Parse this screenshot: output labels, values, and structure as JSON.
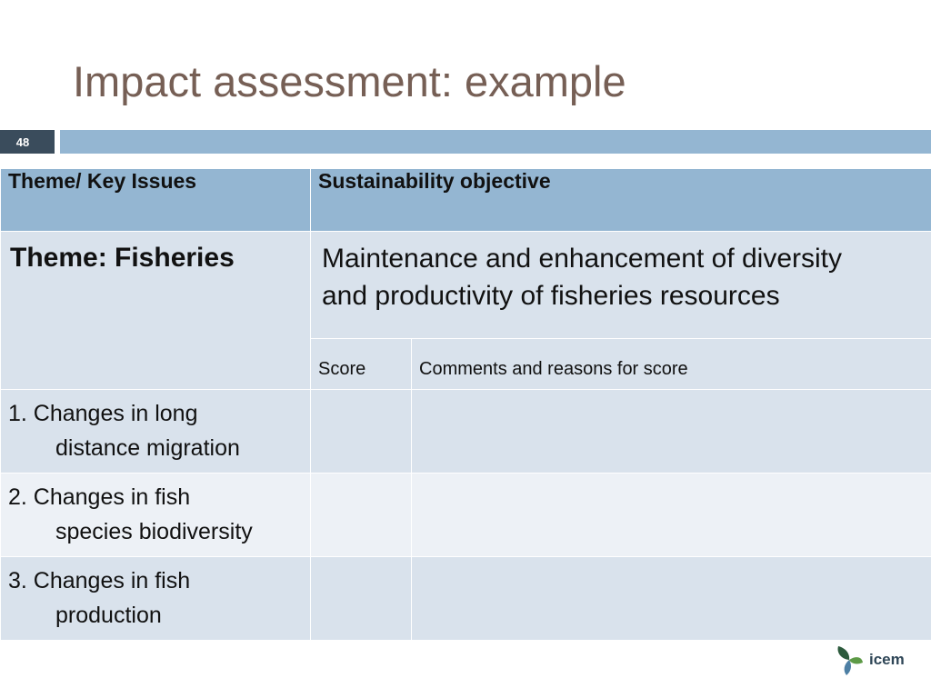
{
  "slide": {
    "title": "Impact assessment: example",
    "page_number": "48"
  },
  "table": {
    "headers": [
      "Theme/ Key Issues",
      "Sustainability objective"
    ],
    "theme": "Theme:  Fisheries",
    "objective_line1": "Maintenance and enhancement of diversity",
    "objective_line2": "and productivity of fisheries resources",
    "sub_headers": [
      "Score",
      "Comments and reasons for score"
    ],
    "rows": [
      {
        "line1": "1. Changes in long",
        "line2": "distance migration",
        "score": "",
        "comments": ""
      },
      {
        "line1": "2. Changes in fish",
        "line2": "species biodiversity",
        "score": "",
        "comments": ""
      },
      {
        "line1": "3. Changes in fish",
        "line2": "production",
        "score": "",
        "comments": ""
      }
    ]
  },
  "logo": {
    "text": "icem",
    "colors": {
      "leaf_dark": "#2c5a3c",
      "leaf_green": "#5d9a46",
      "leaf_blue": "#4d7fa4"
    }
  }
}
